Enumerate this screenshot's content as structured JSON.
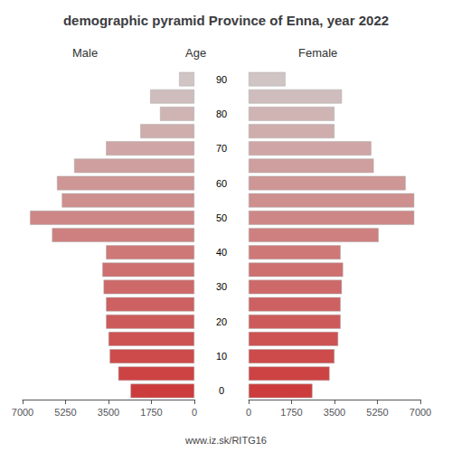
{
  "chart_data": {
    "type": "bar",
    "orientation": "horizontal",
    "title": "demographic pyramid Province of Enna, year 2022",
    "ylabel": "Age",
    "annotations": [
      "www.iz.sk/RITG16"
    ],
    "categories": [
      "0",
      null,
      "10",
      null,
      "20",
      null,
      "30",
      null,
      "40",
      null,
      "50",
      null,
      "60",
      null,
      "70",
      null,
      "80",
      null,
      "90"
    ],
    "series": [
      {
        "name": "Male",
        "values": [
          2600,
          3100,
          3450,
          3500,
          3600,
          3600,
          3700,
          3750,
          3600,
          5800,
          6700,
          5400,
          5600,
          4900,
          3600,
          2200,
          1400,
          1800,
          620
        ]
      },
      {
        "name": "Female",
        "values": [
          2600,
          3300,
          3500,
          3650,
          3750,
          3750,
          3800,
          3850,
          3750,
          5300,
          6750,
          6750,
          6400,
          5100,
          5000,
          3500,
          3500,
          3800,
          1500
        ]
      }
    ],
    "colors": [
      "#cd3c3c",
      "#cd4343",
      "#cd4b4b",
      "#cd5252",
      "#cd5a5a",
      "#cd6161",
      "#ce6969",
      "#ce7070",
      "#ce7878",
      "#ce8080",
      "#ce8787",
      "#ce8f8f",
      "#cf9696",
      "#cf9e9e",
      "#cfa5a5",
      "#cfadad",
      "#cfb4b4",
      "#cfbcbc",
      "#d0c4c4"
    ],
    "xlim": [
      0,
      7000
    ],
    "xticks": [
      0,
      1750,
      3500,
      5250,
      7000
    ],
    "grid": false
  }
}
